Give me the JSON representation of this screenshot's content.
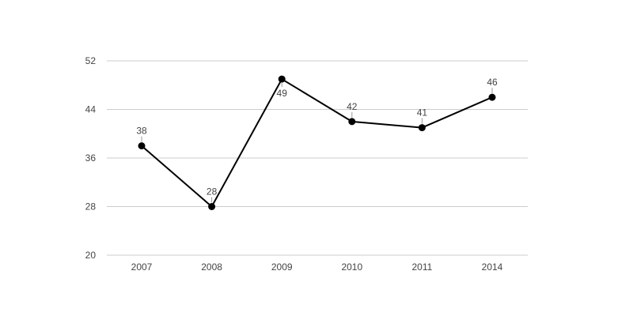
{
  "chart_data": {
    "type": "line",
    "categories": [
      "2007",
      "2008",
      "2009",
      "2010",
      "2011",
      "2014"
    ],
    "series": [
      {
        "values": [
          38,
          28,
          49,
          42,
          41,
          46
        ]
      }
    ],
    "data_labels": [
      "38",
      "28",
      "49",
      "42",
      "41",
      "46"
    ],
    "label_positions": [
      "above",
      "above",
      "below",
      "above",
      "above",
      "above"
    ],
    "y_ticks": [
      20,
      28,
      36,
      44,
      52
    ],
    "ylim": [
      20,
      52
    ],
    "grid": true,
    "legend": "none",
    "colors": {
      "line": "#000000",
      "grid": "#cccccc",
      "text": "#444444"
    }
  }
}
